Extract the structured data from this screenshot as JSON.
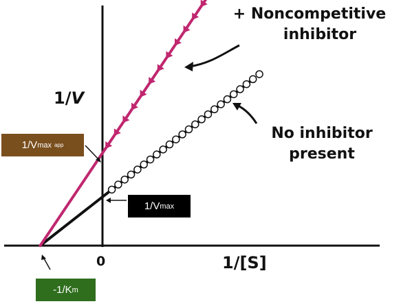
{
  "axes": {
    "y_title_main": "1/",
    "y_title_var": "V",
    "x_title": "1/[S]",
    "origin_label": "0"
  },
  "annotations": {
    "inhibited": [
      "+ Noncompetitive",
      "inhibitor"
    ],
    "uninhibited": [
      "No inhibitor",
      "present"
    ]
  },
  "tags": {
    "vmax_app": {
      "pre": "1/V",
      "sub": "max",
      "sub2": "app",
      "bg": "#7a4f1e",
      "fg": "#ffffff"
    },
    "vmax": {
      "pre": "1/V",
      "sub": "max",
      "bg": "#000000",
      "fg": "#ffffff"
    },
    "km": {
      "pre": "-1/K",
      "sub": "m",
      "bg": "#2f6e1d",
      "fg": "#ffffff"
    }
  },
  "colors": {
    "inhibited_line": "#c0276f",
    "uninhibited_line": "#111111",
    "axis": "#111111"
  },
  "chart_data": {
    "type": "line",
    "title": "",
    "xlabel": "1/[S]",
    "ylabel": "1/V",
    "x_intercept_label": "-1/Km",
    "series": [
      {
        "name": "+ Noncompetitive inhibitor",
        "slope": 1.9,
        "y_intercept": 1.9,
        "markers": "arrowheads"
      },
      {
        "name": "No inhibitor present",
        "slope": 1.0,
        "y_intercept": 1.0,
        "markers": "open-circles"
      }
    ],
    "x_intercept": -1
  }
}
